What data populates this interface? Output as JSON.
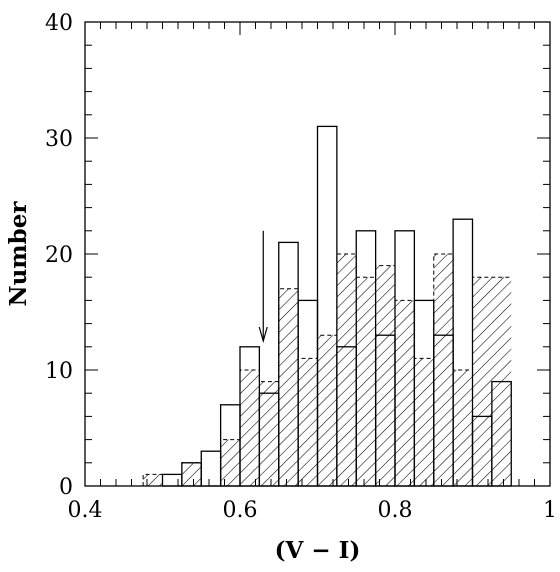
{
  "chart_data": {
    "type": "histogram",
    "xlabel": "(V − I)",
    "ylabel": "Number",
    "xlim": [
      0.4,
      1.0
    ],
    "ylim": [
      0,
      40
    ],
    "x_ticks": [
      "0.4",
      "0.6",
      "0.8",
      "1"
    ],
    "y_ticks": [
      "0",
      "10",
      "20",
      "30",
      "40"
    ],
    "bin_width": 0.025,
    "bin_start": 0.475,
    "series": [
      {
        "style": "open",
        "values": [
          0,
          1,
          2,
          3,
          7,
          12,
          8,
          21,
          16,
          31,
          12,
          22,
          13,
          22,
          16,
          13,
          23,
          6,
          9
        ]
      },
      {
        "style": "hatched",
        "values": [
          1,
          0,
          2,
          0,
          4,
          10,
          9,
          17,
          11,
          13,
          20,
          18,
          19,
          16,
          11,
          20,
          10,
          18,
          18
        ]
      }
    ],
    "annotation": {
      "type": "arrow",
      "x": 0.63,
      "y_from": 22,
      "y_to": 12.5
    },
    "grid": false
  }
}
